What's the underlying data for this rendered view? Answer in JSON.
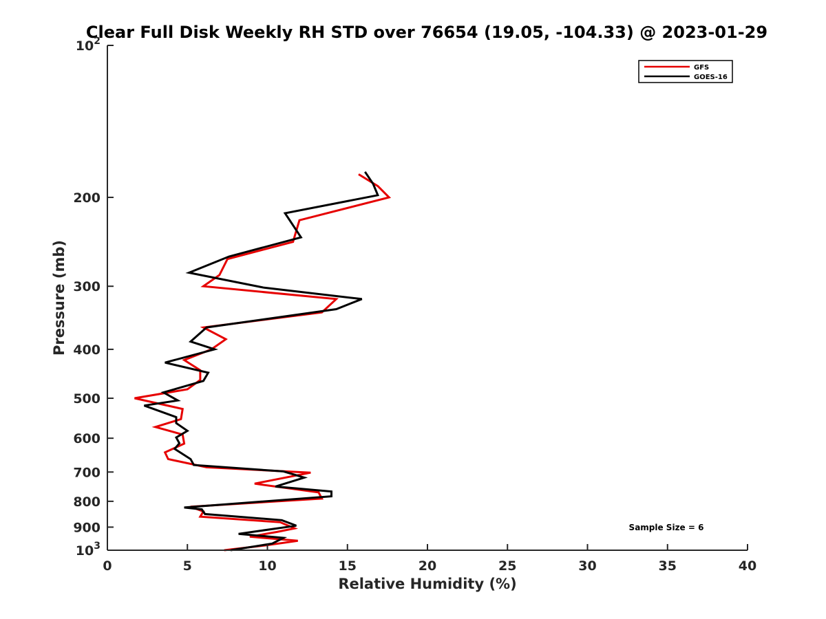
{
  "chart_data": {
    "type": "line",
    "title": "Clear Full Disk Weekly RH STD over 76654 (19.05, -104.33) @ 2023-01-29",
    "xlabel": "Relative Humidity (%)",
    "ylabel": "Pressure (mb)",
    "xlim": [
      0,
      40
    ],
    "ylim": [
      100,
      1000
    ],
    "yscale": "log",
    "yreversed": true,
    "x_ticks": [
      "0",
      "5",
      "10",
      "15",
      "20",
      "25",
      "30",
      "35",
      "40"
    ],
    "x_tick_values": [
      0,
      5,
      10,
      15,
      20,
      25,
      30,
      35,
      40
    ],
    "y_ticks": [
      {
        "value": 100,
        "base": "10",
        "exp": "2"
      },
      {
        "value": 200,
        "base": "200",
        "exp": ""
      },
      {
        "value": 300,
        "base": "300",
        "exp": ""
      },
      {
        "value": 400,
        "base": "400",
        "exp": ""
      },
      {
        "value": 500,
        "base": "500",
        "exp": ""
      },
      {
        "value": 600,
        "base": "600",
        "exp": ""
      },
      {
        "value": 700,
        "base": "700",
        "exp": ""
      },
      {
        "value": 800,
        "base": "800",
        "exp": ""
      },
      {
        "value": 900,
        "base": "900",
        "exp": ""
      },
      {
        "value": 1000,
        "base": "10",
        "exp": "3"
      }
    ],
    "legend": {
      "position": "top-right",
      "entries": [
        "GFS",
        "GOES-16"
      ]
    },
    "annotation": "Sample Size = 6",
    "series": [
      {
        "name": "GFS",
        "color": "#e60000",
        "points": [
          [
            15.7,
            180
          ],
          [
            16.9,
            190
          ],
          [
            17.6,
            200
          ],
          [
            12.0,
            222
          ],
          [
            11.6,
            245
          ],
          [
            7.5,
            265
          ],
          [
            7.0,
            285
          ],
          [
            6.0,
            300
          ],
          [
            14.3,
            318
          ],
          [
            13.4,
            338
          ],
          [
            6.0,
            362
          ],
          [
            7.4,
            382
          ],
          [
            6.5,
            400
          ],
          [
            4.8,
            420
          ],
          [
            5.8,
            440
          ],
          [
            5.8,
            460
          ],
          [
            5.0,
            480
          ],
          [
            1.7,
            500
          ],
          [
            4.7,
            525
          ],
          [
            4.6,
            550
          ],
          [
            3.0,
            570
          ],
          [
            4.7,
            590
          ],
          [
            4.8,
            615
          ],
          [
            3.6,
            640
          ],
          [
            3.8,
            660
          ],
          [
            6.2,
            685
          ],
          [
            12.7,
            702
          ],
          [
            9.2,
            738
          ],
          [
            13.2,
            768
          ],
          [
            13.4,
            790
          ],
          [
            5.2,
            820
          ],
          [
            6.0,
            838
          ],
          [
            5.8,
            858
          ],
          [
            10.8,
            880
          ],
          [
            11.7,
            905
          ],
          [
            10.6,
            920
          ],
          [
            8.9,
            940
          ],
          [
            11.9,
            958
          ],
          [
            9.9,
            978
          ],
          [
            7.3,
            1000
          ]
        ]
      },
      {
        "name": "GOES-16",
        "color": "#000000",
        "points": [
          [
            16.1,
            178
          ],
          [
            16.6,
            188
          ],
          [
            16.9,
            198
          ],
          [
            11.1,
            215
          ],
          [
            12.1,
            240
          ],
          [
            7.6,
            262
          ],
          [
            5.1,
            282
          ],
          [
            9.8,
            302
          ],
          [
            15.9,
            318
          ],
          [
            14.3,
            333
          ],
          [
            6.2,
            362
          ],
          [
            5.2,
            386
          ],
          [
            6.7,
            400
          ],
          [
            3.6,
            425
          ],
          [
            6.3,
            445
          ],
          [
            6.0,
            462
          ],
          [
            3.5,
            487
          ],
          [
            4.4,
            505
          ],
          [
            2.3,
            517
          ],
          [
            4.3,
            545
          ],
          [
            4.3,
            560
          ],
          [
            5.0,
            580
          ],
          [
            4.3,
            598
          ],
          [
            4.5,
            614
          ],
          [
            4.2,
            630
          ],
          [
            5.2,
            660
          ],
          [
            5.4,
            678
          ],
          [
            11.0,
            698
          ],
          [
            12.3,
            718
          ],
          [
            10.5,
            748
          ],
          [
            14.0,
            765
          ],
          [
            14.0,
            782
          ],
          [
            4.8,
            823
          ],
          [
            5.9,
            830
          ],
          [
            6.1,
            848
          ],
          [
            10.9,
            872
          ],
          [
            11.8,
            894
          ],
          [
            8.2,
            928
          ],
          [
            11.0,
            945
          ],
          [
            10.3,
            970
          ],
          [
            7.7,
            1000
          ]
        ]
      }
    ]
  }
}
